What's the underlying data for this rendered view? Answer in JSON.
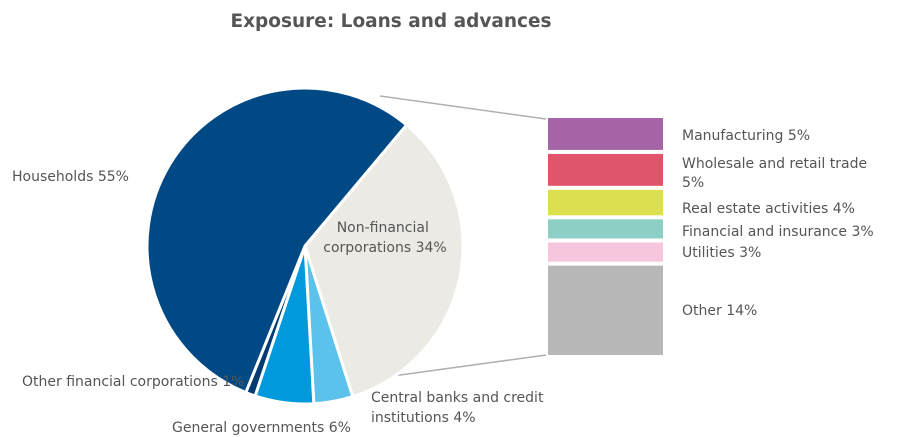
{
  "chart_data": {
    "type": "pie",
    "title": "Exposure: Loans and advances",
    "slices": [
      {
        "label": "Non-financial corporations 34%",
        "value": 34,
        "color": "#ebeae5"
      },
      {
        "label": "Central banks and credit institutions 4%",
        "value": 4,
        "color": "#5bc2ec"
      },
      {
        "label": "General governments 6%",
        "value": 6,
        "color": "#0099db"
      },
      {
        "label": "Other financial corporations 1%",
        "value": 1,
        "color": "#003a70"
      },
      {
        "label": "Households 55%",
        "value": 55,
        "color": "#004985"
      }
    ],
    "breakdown": {
      "of": "Non-financial corporations",
      "type": "stacked-bar",
      "segments": [
        {
          "label": "Manufacturing 5%",
          "value": 5,
          "color": "#a564a6"
        },
        {
          "label": "Wholesale and retail trade 5%",
          "value": 5,
          "color": "#e0556a"
        },
        {
          "label": "Real estate activities 4%",
          "value": 4,
          "color": "#dde04e"
        },
        {
          "label": "Financial and insurance 3%",
          "value": 3,
          "color": "#8dcfc4"
        },
        {
          "label": "Utilities 3%",
          "value": 3,
          "color": "#f5c6dc"
        },
        {
          "label": "Other 14%",
          "value": 14,
          "color": "#b7b7b7"
        }
      ]
    }
  }
}
